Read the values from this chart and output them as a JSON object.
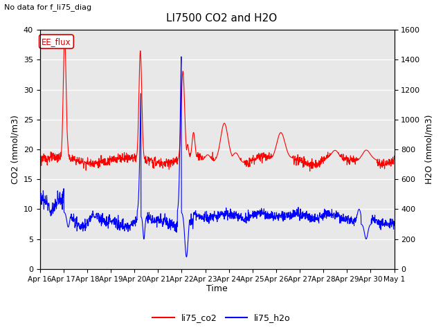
{
  "title": "LI7500 CO2 and H2O",
  "subtitle": "No data for f_li75_diag",
  "xlabel": "Time",
  "ylabel_left": "CO2 (mmol/m3)",
  "ylabel_right": "H2O (mmol/m3)",
  "ylim_left": [
    0,
    40
  ],
  "ylim_right": [
    0,
    1600
  ],
  "legend_entries": [
    "li75_co2",
    "li75_h2o"
  ],
  "box_label": "EE_flux",
  "box_color": "#cc0000",
  "background_color": "#ffffff",
  "plot_bg_color": "#e8e8e8",
  "xtick_labels": [
    "Apr 16",
    "Apr 17",
    "Apr 18",
    "Apr 19",
    "Apr 20",
    "Apr 21",
    "Apr 22",
    "Apr 23",
    "Apr 24",
    "Apr 25",
    "Apr 26",
    "Apr 27",
    "Apr 28",
    "Apr 29",
    "Apr 30",
    "May 1"
  ],
  "n_points": 1500,
  "figwidth": 6.4,
  "figheight": 4.8,
  "dpi": 100
}
